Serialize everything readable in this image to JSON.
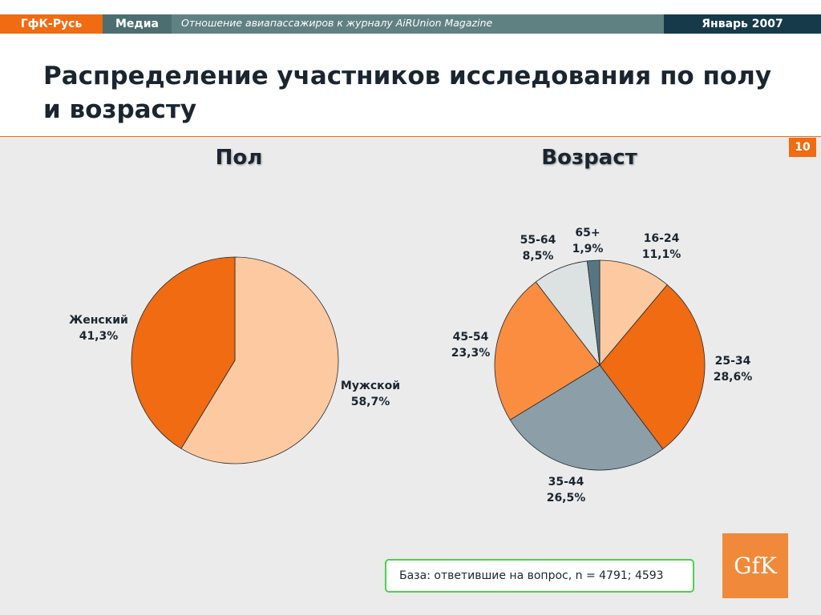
{
  "header": {
    "brand": "ГфК-Русь",
    "section": "Медиа",
    "subject": "Отношение авиапассажиров к журналу AiRUnion Magazine",
    "date": "Январь 2007"
  },
  "title": "Распределение участников исследования по полу и возрасту",
  "page_number": "10",
  "footnote": "База: ответившие на вопрос, n = 4791; 4593",
  "logo_text": "GfK",
  "colors": {
    "orange": "#f06b12",
    "light_orange": "#fdc9a1",
    "mid_orange": "#fb8d40",
    "steel": "#8c9fa8",
    "light_gray": "#dce1e1",
    "dark_teal": "#587681"
  },
  "chart_data": [
    {
      "type": "pie",
      "title": "Пол",
      "categories": [
        "Мужской",
        "Женский"
      ],
      "values": [
        58.7,
        41.3
      ],
      "value_labels": [
        "58,7%",
        "41,3%"
      ],
      "colors": [
        "#fdc9a1",
        "#f06b12"
      ]
    },
    {
      "type": "pie",
      "title": "Возраст",
      "categories": [
        "16-24",
        "25-34",
        "35-44",
        "45-54",
        "55-64",
        "65+"
      ],
      "values": [
        11.1,
        28.6,
        26.5,
        23.3,
        8.5,
        1.9
      ],
      "value_labels": [
        "11,1%",
        "28,6%",
        "26,5%",
        "23,3%",
        "8,5%",
        "1,9%"
      ],
      "colors": [
        "#fdc9a1",
        "#f06b12",
        "#8c9fa8",
        "#fb8d40",
        "#dce1e1",
        "#587681"
      ]
    }
  ]
}
